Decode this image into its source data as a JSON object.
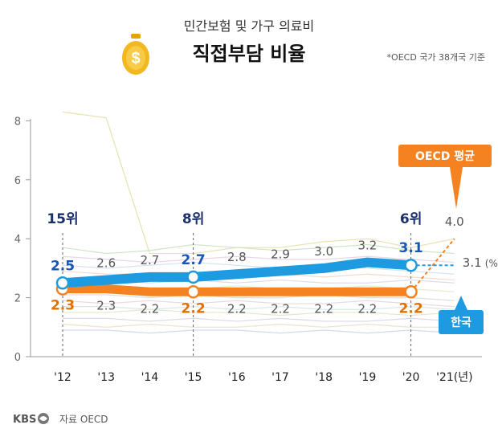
{
  "header": {
    "subtitle": "민간보험 및 가구 의료비",
    "title": "직접부담 비율",
    "note": "*OECD 국가 38개국 기준"
  },
  "footer": {
    "logo": "KBS",
    "source": "자료 OECD"
  },
  "colors": {
    "korea": "#1e9be0",
    "oecd": "#f58220",
    "korea_label": "#1a56b8",
    "oecd_label": "#e07000",
    "rank": "#1a2f6b"
  },
  "chart_data": {
    "type": "line",
    "x": [
      "'12",
      "'13",
      "'14",
      "'15",
      "'16",
      "'17",
      "'18",
      "'19",
      "'20",
      "'21"
    ],
    "x_unit": "(년)",
    "ylim": [
      0,
      9
    ],
    "yticks": [
      "0",
      "2",
      "4",
      "6",
      "8"
    ],
    "series": [
      {
        "name": "한국",
        "values": [
          2.5,
          2.6,
          2.7,
          2.7,
          2.8,
          2.9,
          3.0,
          3.2,
          3.1,
          3.1
        ],
        "labels": [
          "2.5",
          "2.6",
          "2.7",
          "2.7",
          "2.8",
          "2.9",
          "3.0",
          "3.2",
          "3.1",
          "3.1"
        ]
      },
      {
        "name": "OECD 평균",
        "values": [
          2.3,
          2.3,
          2.2,
          2.2,
          2.2,
          2.2,
          2.2,
          2.2,
          2.2,
          4.0
        ],
        "labels": [
          "2.3",
          "2.3",
          "2.2",
          "2.2",
          "2.2",
          "2.2",
          "2.2",
          "2.2",
          "2.2",
          "4.0"
        ]
      }
    ],
    "value_unit": "(%)",
    "korea_rank": [
      {
        "year": "'12",
        "label": "15위"
      },
      {
        "year": "'15",
        "label": "8위"
      },
      {
        "year": "'20",
        "label": "6위"
      }
    ],
    "background_lines": [
      [
        8.3,
        8.1,
        3.5,
        3.5,
        3.7,
        3.7,
        3.9,
        4.0,
        3.7,
        4.0
      ],
      [
        3.7,
        3.5,
        3.6,
        3.8,
        3.7,
        3.6,
        3.7,
        3.8,
        3.6,
        3.5
      ],
      [
        3.4,
        3.3,
        3.2,
        3.3,
        3.4,
        3.3,
        3.3,
        3.4,
        3.3,
        3.2
      ],
      [
        3.1,
        3.0,
        3.1,
        3.2,
        3.1,
        3.0,
        3.1,
        3.0,
        2.9,
        2.8
      ],
      [
        2.9,
        2.8,
        2.8,
        2.7,
        2.8,
        2.8,
        2.7,
        2.8,
        2.7,
        2.6
      ],
      [
        2.6,
        2.6,
        2.5,
        2.6,
        2.5,
        2.6,
        2.5,
        2.5,
        2.6,
        2.5
      ],
      [
        2.4,
        2.4,
        2.3,
        2.3,
        2.4,
        2.3,
        2.3,
        2.4,
        2.3,
        2.2
      ],
      [
        2.1,
        2.1,
        2.0,
        2.1,
        2.0,
        2.0,
        2.1,
        2.0,
        2.0,
        1.9
      ],
      [
        1.9,
        1.8,
        1.9,
        1.8,
        1.9,
        1.8,
        1.8,
        1.9,
        1.8,
        1.7
      ],
      [
        1.7,
        1.7,
        1.6,
        1.7,
        1.6,
        1.7,
        1.6,
        1.6,
        1.7,
        1.6
      ],
      [
        1.5,
        1.5,
        1.6,
        1.5,
        1.5,
        1.4,
        1.5,
        1.5,
        1.4,
        1.5
      ],
      [
        1.3,
        1.3,
        1.2,
        1.3,
        1.2,
        1.3,
        1.2,
        1.2,
        1.3,
        1.2
      ],
      [
        1.1,
        1.0,
        1.1,
        1.0,
        1.0,
        1.1,
        1.0,
        1.1,
        1.0,
        1.0
      ],
      [
        0.9,
        0.9,
        0.8,
        0.9,
        0.9,
        0.8,
        0.9,
        0.8,
        0.9,
        0.8
      ]
    ]
  }
}
